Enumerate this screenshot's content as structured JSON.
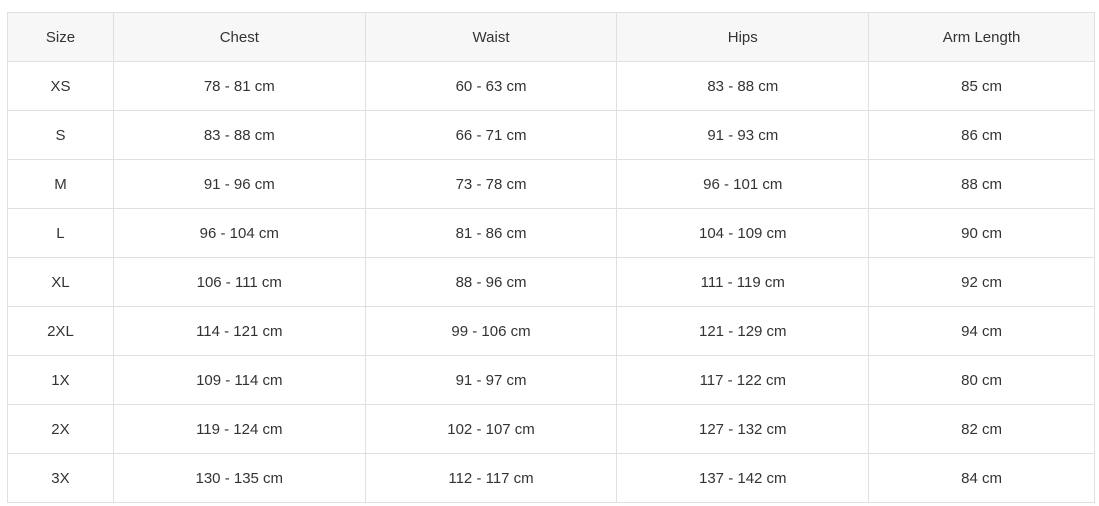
{
  "headers": [
    "Size",
    "Chest",
    "Waist",
    "Hips",
    "Arm Length"
  ],
  "rows": [
    [
      "XS",
      "78 - 81 cm",
      "60 - 63 cm",
      "83 - 88 cm",
      "85 cm"
    ],
    [
      "S",
      "83 - 88 cm",
      "66 - 71 cm",
      "91 - 93 cm",
      "86 cm"
    ],
    [
      "M",
      "91 - 96 cm",
      "73 - 78 cm",
      "96 - 101 cm",
      "88 cm"
    ],
    [
      "L",
      "96 - 104 cm",
      "81 - 86 cm",
      "104 - 109 cm",
      "90 cm"
    ],
    [
      "XL",
      "106 - 111 cm",
      "88 - 96 cm",
      "111 - 119 cm",
      "92 cm"
    ],
    [
      "2XL",
      "114 - 121 cm",
      "99 - 106 cm",
      "121 - 129 cm",
      "94 cm"
    ],
    [
      "1X",
      "109 - 114 cm",
      "91 - 97 cm",
      "117 - 122 cm",
      "80 cm"
    ],
    [
      "2X",
      "119 - 124 cm",
      "102 - 107 cm",
      "127 - 132 cm",
      "82 cm"
    ],
    [
      "3X",
      "130 - 135 cm",
      "112 - 117 cm",
      "137 - 142 cm",
      "84 cm"
    ]
  ]
}
